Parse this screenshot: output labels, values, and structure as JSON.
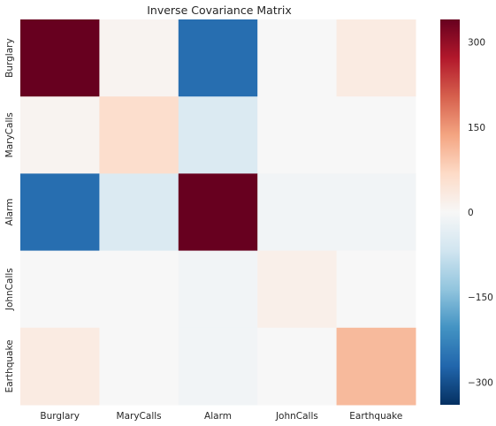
{
  "chart_data": {
    "type": "heatmap",
    "title": "Inverse Covariance Matrix",
    "x_categories": [
      "Burglary",
      "MaryCalls",
      "Alarm",
      "JohnCalls",
      "Earthquake"
    ],
    "y_categories": [
      "Burglary",
      "MaryCalls",
      "Alarm",
      "JohnCalls",
      "Earthquake"
    ],
    "values": [
      [
        340,
        10,
        -260,
        0,
        30
      ],
      [
        10,
        60,
        -50,
        0,
        0
      ],
      [
        -260,
        -50,
        340,
        -10,
        -10
      ],
      [
        0,
        0,
        -10,
        20,
        0
      ],
      [
        30,
        0,
        -10,
        0,
        110
      ]
    ],
    "colorbar": {
      "min": -340,
      "max": 340,
      "ticks": [
        300,
        150,
        0,
        -150,
        -300
      ],
      "tick_labels": [
        "300",
        "150",
        "0",
        "−150",
        "−300"
      ],
      "colormap": "RdBu_r"
    },
    "grid": false
  }
}
